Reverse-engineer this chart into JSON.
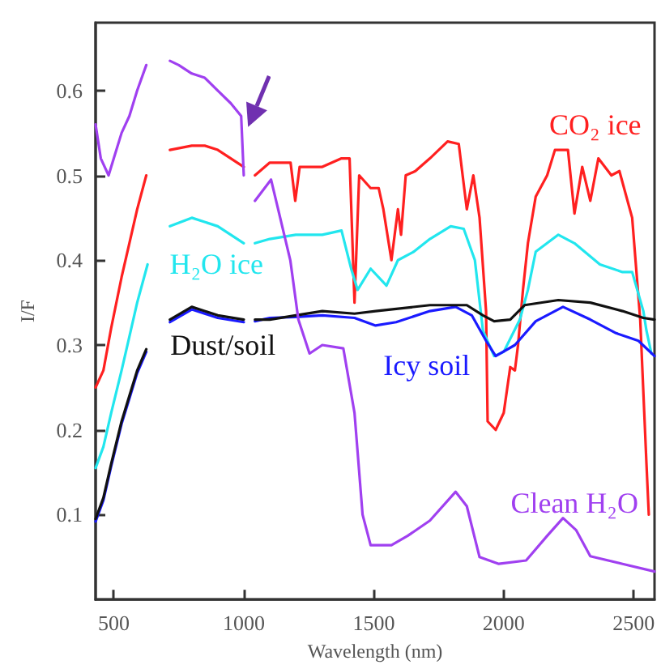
{
  "chart_data": {
    "type": "line",
    "xlabel": "Wavelength (nm)",
    "ylabel": "I/F",
    "xlim": [
      430,
      2580
    ],
    "ylim": [
      0,
      0.68
    ],
    "xticks": [
      500,
      1000,
      1500,
      2000,
      2500
    ],
    "yticks": [
      0.1,
      0.2,
      0.3,
      0.4,
      0.5,
      0.6
    ],
    "grid": false,
    "legend": false,
    "series": [
      {
        "name": "CO₂ ice",
        "color": "#ff2020",
        "x": [
          430,
          460,
          490,
          530,
          560,
          590,
          625,
          670,
          716,
          800,
          850,
          900,
          950,
          1000,
          1020,
          1043,
          1100,
          1180,
          1198,
          1215,
          1250,
          1302,
          1376,
          1407,
          1426,
          1444,
          1488,
          1519,
          1537,
          1568,
          1593,
          1605,
          1623,
          1660,
          1716,
          1784,
          1827,
          1858,
          1883,
          1907,
          1932,
          1938,
          1969,
          2000,
          2025,
          2043,
          2055,
          2074,
          2093,
          2123,
          2167,
          2197,
          2247,
          2272,
          2302,
          2333,
          2364,
          2414,
          2445,
          2494,
          2525,
          2549,
          2558
        ],
        "values": [
          0.25,
          0.27,
          0.32,
          0.38,
          0.42,
          0.46,
          0.5,
          null,
          0.53,
          0.535,
          0.535,
          0.53,
          0.52,
          0.51,
          null,
          0.5,
          0.515,
          0.515,
          0.47,
          0.51,
          0.51,
          0.51,
          0.52,
          0.52,
          0.35,
          0.5,
          0.485,
          0.485,
          0.46,
          0.4,
          0.46,
          0.43,
          0.5,
          0.505,
          0.52,
          0.54,
          0.537,
          0.46,
          0.5,
          0.45,
          0.34,
          0.21,
          0.2,
          0.22,
          0.274,
          0.27,
          0.3,
          0.365,
          0.42,
          0.475,
          0.5,
          0.53,
          0.53,
          0.455,
          0.51,
          0.47,
          0.52,
          0.5,
          0.505,
          0.45,
          0.33,
          0.16,
          0.1
        ]
      },
      {
        "name": "H₂O ice",
        "color": "#22e6ee",
        "x": [
          430,
          460,
          490,
          530,
          560,
          590,
          630,
          670,
          716,
          800,
          900,
          1000,
          1020,
          1043,
          1100,
          1200,
          1302,
          1376,
          1413,
          1438,
          1488,
          1549,
          1593,
          1654,
          1716,
          1796,
          1846,
          1889,
          1920,
          1963,
          2000,
          2062,
          2093,
          2123,
          2210,
          2272,
          2370,
          2457,
          2494,
          2537,
          2549,
          2568
        ],
        "values": [
          0.155,
          0.18,
          0.22,
          0.27,
          0.31,
          0.35,
          0.395,
          null,
          0.44,
          0.45,
          0.44,
          0.42,
          null,
          0.42,
          0.425,
          0.43,
          0.43,
          0.435,
          0.39,
          0.365,
          0.39,
          0.37,
          0.4,
          0.41,
          0.425,
          0.44,
          0.437,
          0.4,
          0.317,
          0.287,
          0.292,
          0.33,
          0.365,
          0.41,
          0.43,
          0.42,
          0.395,
          0.386,
          0.386,
          0.34,
          0.317,
          0.29
        ]
      },
      {
        "name": "Icy soil",
        "color": "#1a1aff",
        "x": [
          430,
          460,
          490,
          530,
          560,
          590,
          625,
          670,
          716,
          800,
          900,
          1000,
          1020,
          1043,
          1100,
          1200,
          1302,
          1426,
          1507,
          1586,
          1716,
          1815,
          1877,
          1932,
          1969,
          2043,
          2123,
          2228,
          2333,
          2432,
          2518,
          2580
        ],
        "values": [
          0.092,
          0.117,
          0.157,
          0.207,
          0.237,
          0.267,
          0.292,
          null,
          0.327,
          0.342,
          0.332,
          0.327,
          null,
          0.328,
          0.332,
          0.333,
          0.335,
          0.332,
          0.323,
          0.327,
          0.34,
          0.345,
          0.335,
          0.305,
          0.287,
          0.3,
          0.328,
          0.345,
          0.33,
          0.314,
          0.305,
          0.287
        ]
      },
      {
        "name": "Dust/soil",
        "color": "#111111",
        "x": [
          430,
          460,
          490,
          530,
          560,
          590,
          625,
          670,
          716,
          800,
          900,
          1000,
          1020,
          1043,
          1100,
          1200,
          1302,
          1426,
          1507,
          1716,
          1858,
          1920,
          1963,
          2025,
          2080,
          2210,
          2333,
          2457,
          2537,
          2580
        ],
        "values": [
          0.095,
          0.12,
          0.16,
          0.21,
          0.24,
          0.27,
          0.295,
          null,
          0.33,
          0.345,
          0.335,
          0.33,
          null,
          0.33,
          0.33,
          0.335,
          0.34,
          0.337,
          0.34,
          0.347,
          0.347,
          0.335,
          0.328,
          0.33,
          0.347,
          0.353,
          0.35,
          0.34,
          0.332,
          0.33
        ]
      },
      {
        "name": "Clean H₂O",
        "color": "#a040f0",
        "x": [
          430,
          450,
          480,
          500,
          530,
          560,
          590,
          625,
          670,
          716,
          750,
          800,
          850,
          900,
          950,
          990,
          1000,
          1020,
          1043,
          1105,
          1179,
          1210,
          1253,
          1302,
          1383,
          1426,
          1457,
          1488,
          1568,
          1630,
          1716,
          1815,
          1858,
          1907,
          1981,
          2086,
          2167,
          2228,
          2278,
          2333,
          2457,
          2580
        ],
        "values": [
          0.56,
          0.52,
          0.5,
          0.52,
          0.55,
          0.57,
          0.6,
          0.63,
          null,
          0.635,
          0.63,
          0.62,
          0.615,
          0.6,
          0.585,
          0.57,
          0.5,
          null,
          0.47,
          0.495,
          0.4,
          0.33,
          0.29,
          0.3,
          0.296,
          0.22,
          0.1,
          0.064,
          0.064,
          0.075,
          0.093,
          0.127,
          0.11,
          0.05,
          0.042,
          0.046,
          0.075,
          0.096,
          0.082,
          0.051,
          0.042,
          0.033
        ]
      }
    ]
  }
}
